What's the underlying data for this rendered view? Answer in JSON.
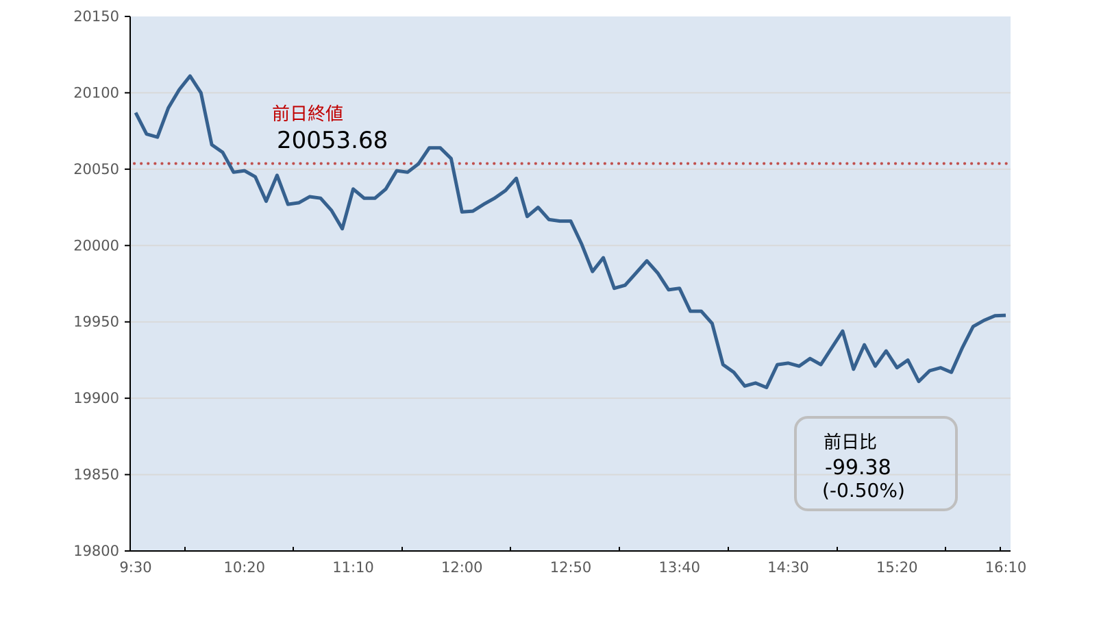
{
  "chart_data": {
    "type": "line",
    "title": "",
    "xlabel": "",
    "ylabel": "",
    "ylim": [
      19800,
      20150
    ],
    "yticks": [
      19800,
      19850,
      19900,
      19950,
      20000,
      20050,
      20100,
      20150
    ],
    "xtick_labels": [
      "9:30",
      "10:20",
      "11:10",
      "12:00",
      "12:50",
      "13:40",
      "14:30",
      "15:20",
      "16:10"
    ],
    "grid": true,
    "colors": {
      "line": "#36618F",
      "plot_bg": "#DCE6F2",
      "reference": "#C0504D",
      "grid": "#D9D9D9"
    },
    "x": [
      "9:30",
      "9:35",
      "9:40",
      "9:45",
      "9:50",
      "9:55",
      "10:00",
      "10:05",
      "10:10",
      "10:15",
      "10:20",
      "10:25",
      "10:30",
      "10:35",
      "10:40",
      "10:45",
      "10:50",
      "10:55",
      "11:00",
      "11:05",
      "11:10",
      "11:15",
      "11:20",
      "11:25",
      "11:30",
      "11:35",
      "11:40",
      "11:45",
      "11:50",
      "11:55",
      "12:00",
      "12:05",
      "12:10",
      "12:15",
      "12:20",
      "12:25",
      "12:30",
      "12:35",
      "12:40",
      "12:45",
      "12:50",
      "12:55",
      "13:00",
      "13:05",
      "13:10",
      "13:15",
      "13:20",
      "13:25",
      "13:30",
      "13:35",
      "13:40",
      "13:45",
      "13:50",
      "13:55",
      "14:00",
      "14:05",
      "14:10",
      "14:15",
      "14:20",
      "14:25",
      "14:30",
      "14:35",
      "14:40",
      "14:45",
      "14:50",
      "14:55",
      "15:00",
      "15:05",
      "15:10",
      "15:15",
      "15:20",
      "15:25",
      "15:30",
      "15:35",
      "15:40",
      "15:45",
      "15:50",
      "15:55",
      "16:00",
      "16:05",
      "16:10"
    ],
    "values": [
      20087,
      20073,
      20071,
      20090,
      20102,
      20111,
      20100,
      20066,
      20061,
      20048,
      20049,
      20045,
      20029,
      20046,
      20027,
      20028,
      20032,
      20031,
      20023,
      20011,
      20037,
      20031,
      20031,
      20037,
      20049,
      20048,
      20053.5,
      20064,
      20064,
      20057,
      20022,
      20022.5,
      20027,
      20031,
      20036,
      20044,
      20019,
      20025,
      20017,
      20016,
      20016,
      20001,
      19983,
      19992,
      19972,
      19974,
      19982,
      19990,
      19982,
      19971,
      19972,
      19957,
      19957,
      19949,
      19922,
      19917,
      19908,
      19910,
      19907,
      19922,
      19923,
      19921,
      19926,
      19922,
      19933,
      19944,
      19919,
      19935,
      19921,
      19931,
      19920,
      19925,
      19911,
      19918,
      19920,
      19917,
      19933,
      19947,
      19951,
      19954,
      19954.3
    ],
    "reference_line": {
      "value": 20053.68,
      "label": "前日終値",
      "value_label": "20053.68"
    },
    "annotation": {
      "label": "前日比",
      "change": "-99.38",
      "percent": "(-0.50%)"
    }
  }
}
